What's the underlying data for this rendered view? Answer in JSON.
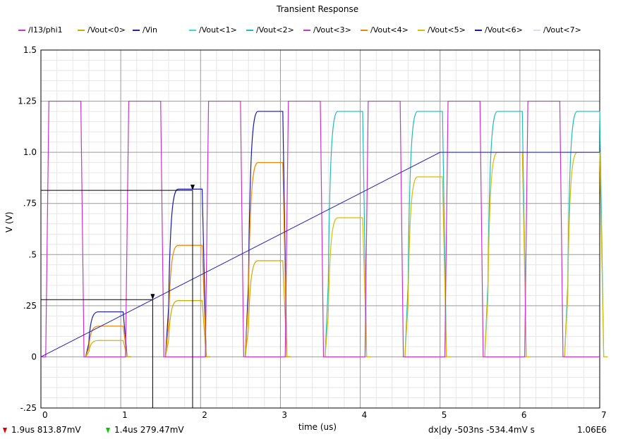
{
  "chart_data": {
    "type": "line",
    "title": "Transient Response",
    "xlabel": "time (us)",
    "ylabel": "V (V)",
    "xlim": [
      0,
      7
    ],
    "ylim": [
      -0.25,
      1.5
    ],
    "x_ticks": [
      "0",
      "1",
      "2",
      "3",
      "4",
      "5",
      "6",
      "7"
    ],
    "y_ticks": [
      "-.25",
      "0",
      ".25",
      ".5",
      ".75",
      "1.0",
      "1.25",
      "1.5"
    ],
    "grid": true,
    "legend_position": "top",
    "series": [
      {
        "name": "/I13/phi1",
        "color": "#cc33cc"
      },
      {
        "name": "/Vout<0>",
        "color": "#ccaa00"
      },
      {
        "name": "/Vin",
        "color": "#2222bb"
      },
      {
        "name": "/Vout<1>",
        "color": "#33dddd"
      },
      {
        "name": "/Vout<2>",
        "color": "#22bbbb"
      },
      {
        "name": "/Vout<3>",
        "color": "#cc33cc"
      },
      {
        "name": "/Vout<4>",
        "color": "#ee8800"
      },
      {
        "name": "/Vout<5>",
        "color": "#ddbb00"
      },
      {
        "name": "/Vout<6>",
        "color": "#1a1aaa"
      },
      {
        "name": "/Vout<7>",
        "color": "#ddddf2"
      }
    ],
    "vin": {
      "x": [
        0,
        5,
        7
      ],
      "y": [
        0,
        1.0,
        1.0
      ]
    },
    "phi1": {
      "low": 0,
      "high": 1.25,
      "high_intervals": [
        [
          0.1,
          0.5
        ],
        [
          1.1,
          1.5
        ],
        [
          2.1,
          2.5
        ],
        [
          3.1,
          3.5
        ],
        [
          4.1,
          4.5
        ],
        [
          5.1,
          5.5
        ],
        [
          6.1,
          6.5
        ]
      ]
    },
    "hold_levels": [
      {
        "start": 0.6,
        "end": 1.03,
        "levels": [
          0.22,
          0.15,
          0.08
        ]
      },
      {
        "start": 1.6,
        "end": 2.02,
        "levels": [
          0.82,
          0.545,
          0.275
        ]
      },
      {
        "start": 2.6,
        "end": 3.03,
        "levels": [
          1.2,
          0.95,
          0.47
        ]
      },
      {
        "start": 3.6,
        "end": 4.03,
        "levels": [
          1.2,
          0.68
        ]
      },
      {
        "start": 4.6,
        "end": 5.03,
        "levels": [
          1.2,
          0.88
        ]
      },
      {
        "start": 5.6,
        "end": 6.03,
        "levels": [
          1.2,
          1.0
        ]
      },
      {
        "start": 6.6,
        "end": 7.0,
        "levels": [
          1.2,
          1.0
        ]
      }
    ],
    "cursors": [
      {
        "x": 1.9,
        "y": 0.81387
      },
      {
        "x": 1.4,
        "y": 0.27947
      }
    ]
  },
  "status": {
    "cursor_a": "1.9us   813.87mV",
    "cursor_b": "1.4us   279.47mV",
    "delta": "dx|dy  -503ns     -534.4mV  s",
    "slope": "1.06E6"
  },
  "colors": {
    "cursor_a_marker": "#dd0000",
    "cursor_b_marker": "#00cc00",
    "grid": "#999999"
  }
}
